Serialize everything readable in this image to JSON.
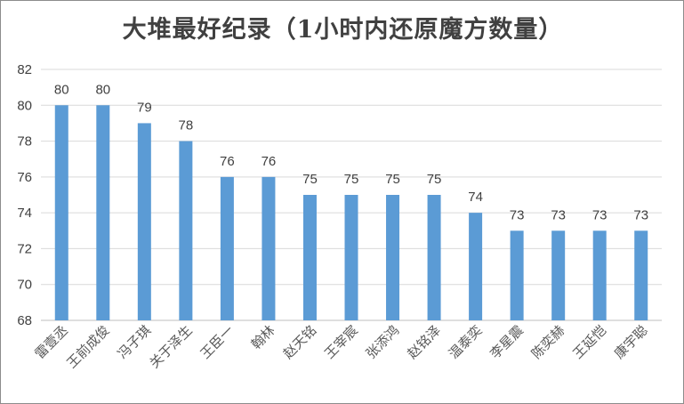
{
  "chart_data": {
    "type": "bar",
    "title": "大堆最好纪录（1小时内还原魔方数量）",
    "categories": [
      "雷壹丞",
      "王前成俊",
      "冯子琪",
      "关于泽生",
      "王臣一",
      "翰林",
      "赵天铭",
      "王宰宸",
      "张添鸿",
      "赵铭泽",
      "温泰奕",
      "李星震",
      "陈奕赫",
      "王延恺",
      "康宇聪"
    ],
    "values": [
      80,
      80,
      79,
      78,
      76,
      76,
      75,
      75,
      75,
      75,
      74,
      73,
      73,
      73,
      73
    ],
    "ylim": [
      68,
      82
    ],
    "yticks": [
      68,
      70,
      72,
      74,
      76,
      78,
      80,
      82
    ],
    "xlabel": "",
    "ylabel": "",
    "grid": true,
    "legend": "none",
    "bar_color": "#5b9bd5",
    "grid_color": "#d9d9d9"
  }
}
